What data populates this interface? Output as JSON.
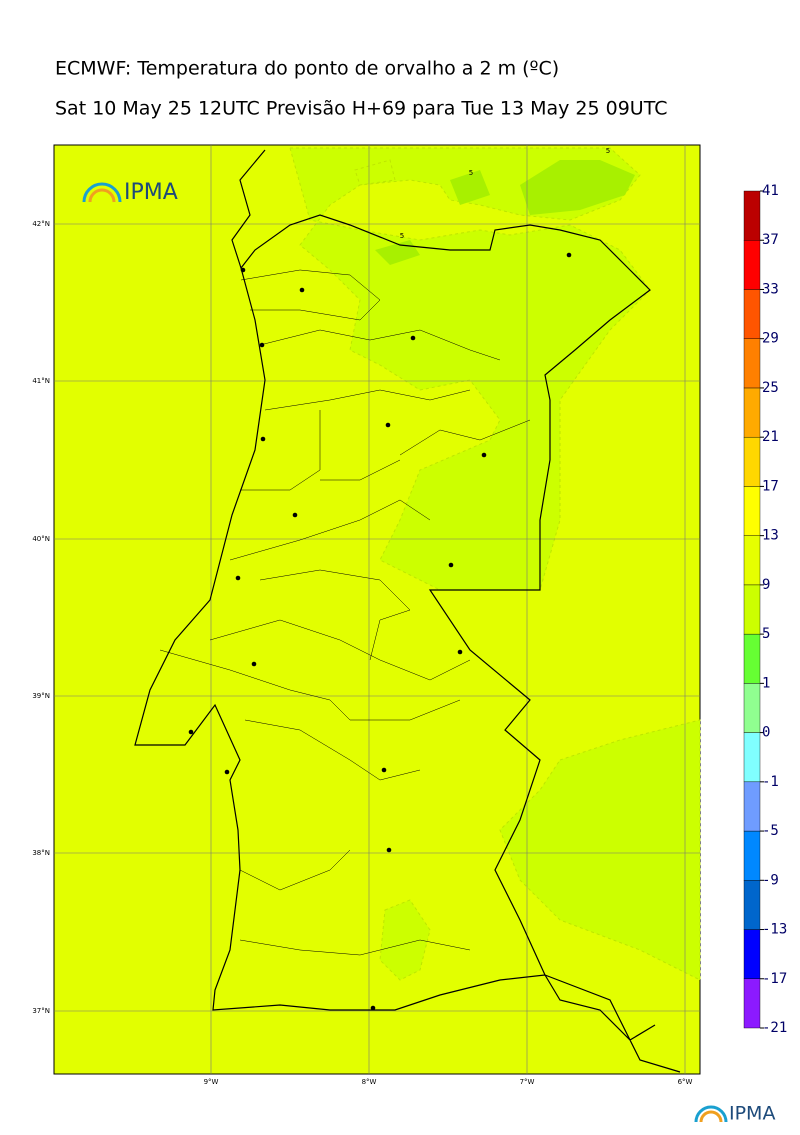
{
  "title": "ECMWF: Temperatura do ponto de orvalho a 2 m (ºC)",
  "subtitle": "Sat 10 May 25 12UTC Previsão H+69 para Tue 13 May 25 09UTC",
  "logo": "IPMA",
  "map": {
    "lat_labels": [
      "42°N",
      "41°N",
      "40°N",
      "39°N",
      "38°N",
      "37°N"
    ],
    "lon_labels": [
      "9°W",
      "8°W",
      "7°W",
      "6°W"
    ],
    "contour_label": "5"
  },
  "colorbar": {
    "ticks": [
      -21,
      -17,
      -13,
      -9,
      -5,
      -1,
      0,
      1,
      5,
      9,
      13,
      17,
      21,
      25,
      29,
      33,
      37,
      41
    ],
    "colors": [
      "#8c1aff",
      "#0000ff",
      "#0066cc",
      "#0088ff",
      "#6f9cff",
      "#80ffff",
      "#90ff90",
      "#66ff33",
      "#ccff00",
      "#e6ff00",
      "#ffff00",
      "#ffd700",
      "#ffaa00",
      "#ff8000",
      "#ff5500",
      "#ff0000",
      "#bb0000"
    ]
  }
}
